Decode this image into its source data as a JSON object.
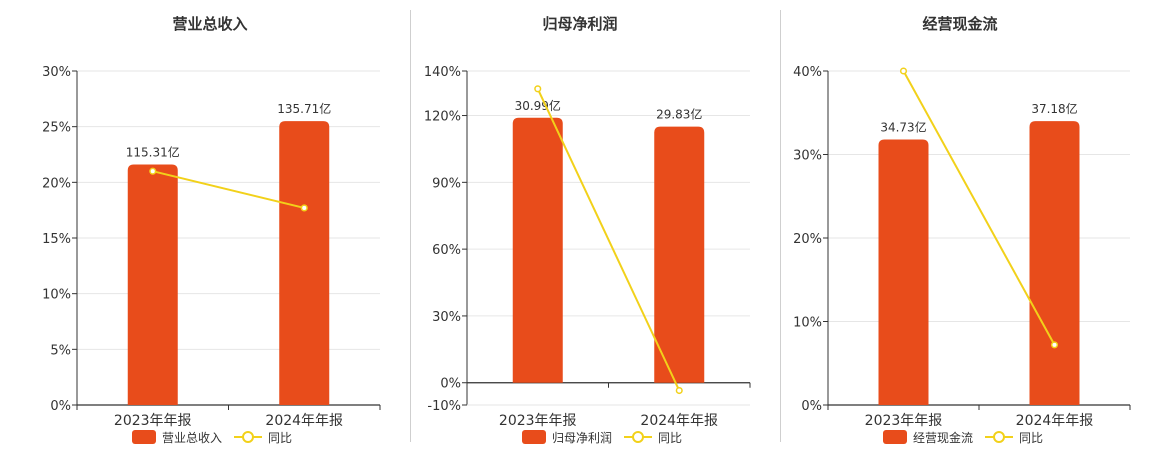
{
  "colors": {
    "bar": "#E84C1B",
    "line": "#F2D11A",
    "axis": "#333333",
    "grid": "#e6e6e6",
    "title": "#333333"
  },
  "chart_data": [
    {
      "type": "bar",
      "title": "营业总收入",
      "categories": [
        "2023年年报",
        "2024年年报"
      ],
      "ylim": [
        0,
        30
      ],
      "yticks": [
        "0%",
        "5%",
        "10%",
        "15%",
        "20%",
        "25%",
        "30%"
      ],
      "ytick_values": [
        0,
        5,
        10,
        15,
        20,
        25,
        30
      ],
      "series": [
        {
          "name": "营业总收入",
          "type": "bar",
          "values": [
            21.6,
            25.5
          ],
          "labels": [
            "115.31亿",
            "135.71亿"
          ]
        },
        {
          "name": "同比",
          "type": "line",
          "values": [
            21.0,
            17.7
          ]
        }
      ],
      "legend": "bottom",
      "grid": true
    },
    {
      "type": "bar",
      "title": "归母净利润",
      "categories": [
        "2023年年报",
        "2024年年报"
      ],
      "ylim": [
        -10,
        140
      ],
      "yticks": [
        "-10%",
        "0%",
        "30%",
        "60%",
        "90%",
        "120%",
        "140%"
      ],
      "ytick_values": [
        -10,
        0,
        30,
        60,
        90,
        120,
        140
      ],
      "series": [
        {
          "name": "归母净利润",
          "type": "bar",
          "values": [
            119,
            115
          ],
          "labels": [
            "30.99亿",
            "29.83亿"
          ]
        },
        {
          "name": "同比",
          "type": "line",
          "values": [
            132,
            -3.5
          ]
        }
      ],
      "legend": "bottom",
      "grid": true
    },
    {
      "type": "bar",
      "title": "经营现金流",
      "categories": [
        "2023年年报",
        "2024年年报"
      ],
      "ylim": [
        0,
        40
      ],
      "yticks": [
        "0%",
        "10%",
        "20%",
        "30%",
        "40%"
      ],
      "ytick_values": [
        0,
        10,
        20,
        30,
        40
      ],
      "series": [
        {
          "name": "经营现金流",
          "type": "bar",
          "values": [
            31.8,
            34.0
          ],
          "labels": [
            "34.73亿",
            "37.18亿"
          ]
        },
        {
          "name": "同比",
          "type": "line",
          "values": [
            40.0,
            7.2
          ]
        }
      ],
      "legend": "bottom",
      "grid": true
    }
  ]
}
